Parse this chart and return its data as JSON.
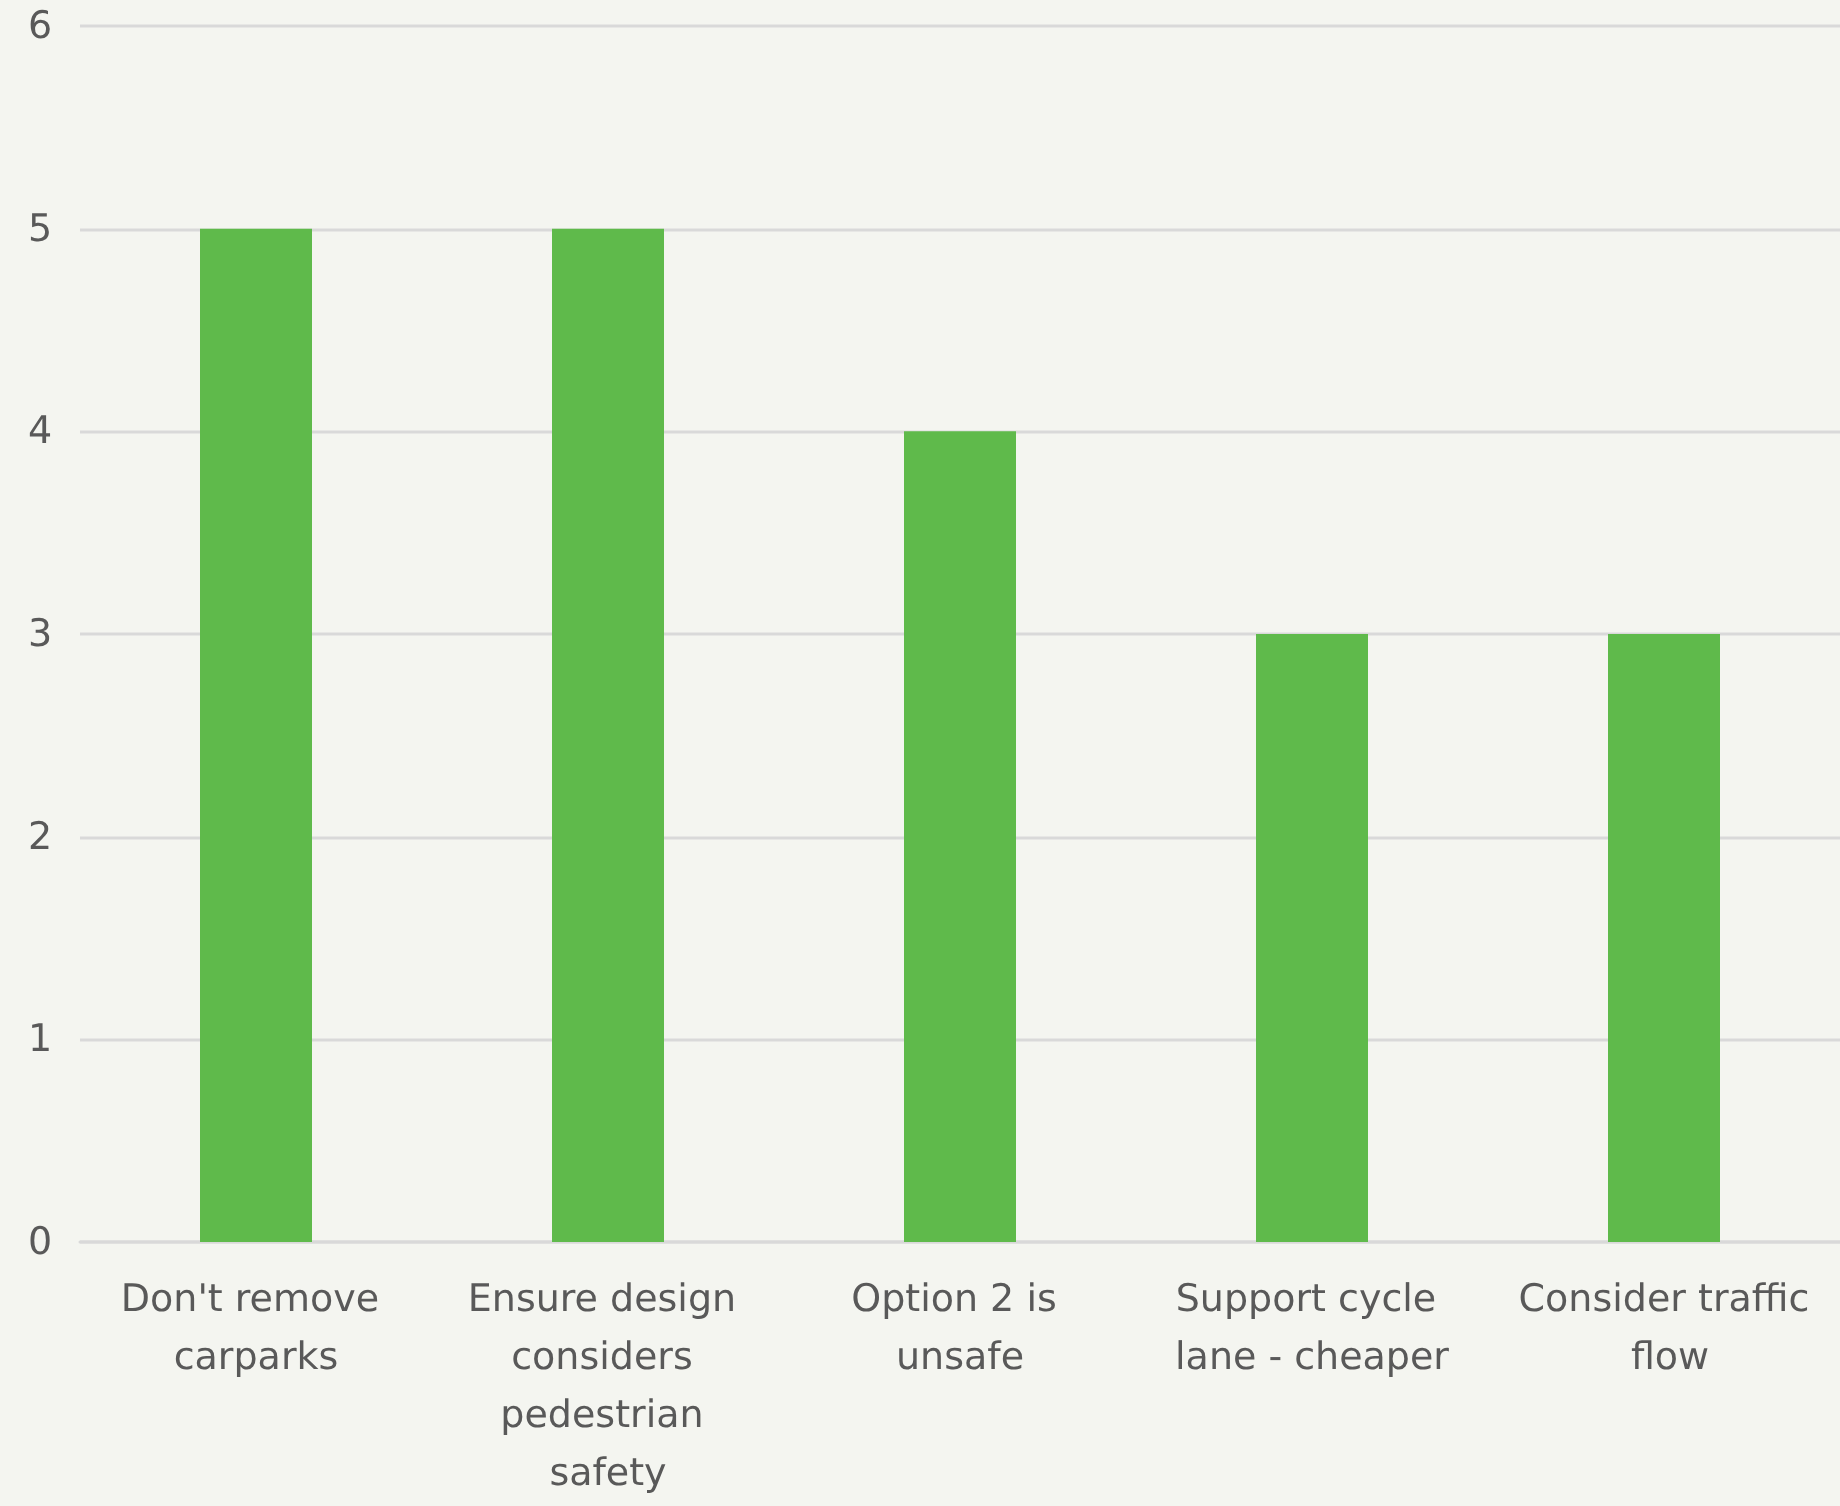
{
  "chart_data": {
    "type": "bar",
    "categories": [
      "Don't remove carparks",
      "Ensure design considers pedestrian safety",
      "Option 2 is unsafe",
      "Support cycle lane - cheaper",
      "Consider traffic flow"
    ],
    "values": [
      5,
      5,
      4,
      3,
      3
    ],
    "color": "#5fba4b",
    "ylim": [
      0,
      6
    ],
    "yticks": [
      0,
      1,
      2,
      3,
      4,
      5,
      6
    ],
    "grid": "y"
  }
}
